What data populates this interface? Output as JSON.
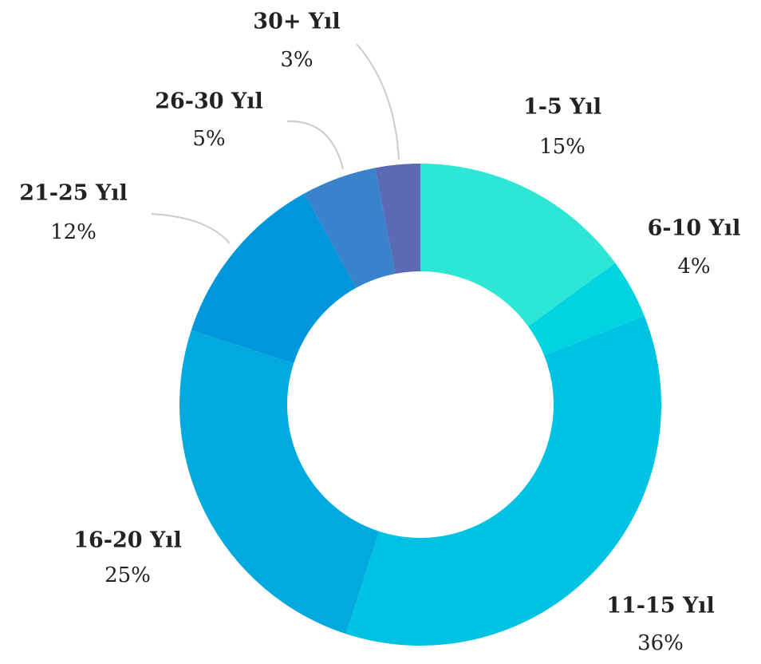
{
  "chart_data": {
    "type": "donut",
    "categories": [
      "1-5 Yıl",
      "6-10 Yıl",
      "11-15 Yıl",
      "16-20 Yıl",
      "21-25 Yıl",
      "26-30 Yıl",
      "30+ Yıl"
    ],
    "values": [
      15,
      4,
      36,
      25,
      12,
      5,
      3
    ],
    "value_labels": [
      "15%",
      "4%",
      "36%",
      "25%",
      "12%",
      "5%",
      "3%"
    ],
    "colors": [
      "#2ee6d6",
      "#00d4e0",
      "#00c2e3",
      "#00aadf",
      "#0096db",
      "#3a82cc",
      "#5a6ab4"
    ]
  }
}
